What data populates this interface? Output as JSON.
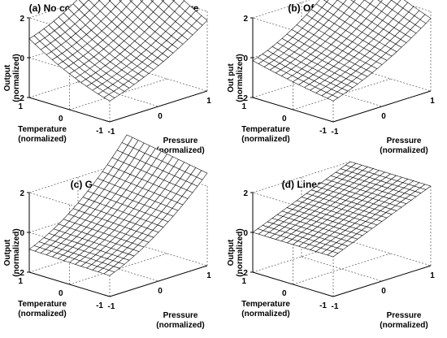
{
  "chart_data": [
    {
      "type": "surface",
      "title": "(a) No corrected measurement curve",
      "xlabel": [
        "Pressure",
        "(normalized)"
      ],
      "ylabel": [
        "Temperature",
        "(normalized)"
      ],
      "zlabel": [
        "Output",
        "(normalized)"
      ],
      "xlim": [
        -1,
        1
      ],
      "ylim": [
        -1,
        1
      ],
      "zlim": [
        -2,
        2
      ],
      "xticks": [
        "-1",
        "0",
        "1"
      ],
      "yticks": [
        "-1",
        "0",
        "1"
      ],
      "zticks": [
        "-2",
        "0",
        "2"
      ],
      "grid": true,
      "mesh": {
        "x_points": 21,
        "y_points": 15,
        "z_corners": {
          "x-1_y-1": -1.0,
          "x1_y-1": -0.2,
          "x-1_y1": 0.3,
          "x1_y1": 1.8
        }
      },
      "surface": {
        "z0": -0.95,
        "ax": 0.75,
        "ay": 0.55,
        "qx": 0.25,
        "qy": 0.2,
        "e": 0.9
      }
    },
    {
      "type": "surface",
      "title": "(b) Offest correction",
      "xlabel": [
        "Pressure",
        "(normalized)"
      ],
      "ylabel": [
        "Temperature",
        "(normalized)"
      ],
      "zlabel": [
        "Out put",
        "(normalized)"
      ],
      "xlim": [
        -1,
        1
      ],
      "ylim": [
        -1,
        1
      ],
      "zlim": [
        -2,
        2
      ],
      "xticks": [
        "-1",
        "0",
        "1"
      ],
      "yticks": [
        "-1",
        "0",
        "1"
      ],
      "zticks": [
        "-2",
        "0",
        "2"
      ],
      "grid": true,
      "mesh": {
        "x_points": 21,
        "y_points": 15,
        "z_corners": {
          "x-1_y-1": -1.0,
          "x1_y-1": 0.0,
          "x-1_y1": -0.6,
          "x1_y1": 1.8
        }
      },
      "surface": {
        "z0": -0.95,
        "ax": 0.8,
        "ay": 0.3,
        "qx": 0.25,
        "qy": 0.05,
        "e": 0.9
      }
    },
    {
      "type": "surface",
      "title": "(c) Gain correction",
      "xlabel": [
        "Pressure",
        "(normalized)"
      ],
      "ylabel": [
        "Temperature",
        "(normalized)"
      ],
      "zlabel": [
        "Output",
        "(normalized)"
      ],
      "xlim": [
        -1,
        1
      ],
      "ylim": [
        -1,
        1
      ],
      "zlim": [
        -2,
        2
      ],
      "xticks": [
        "-1",
        "0",
        "1"
      ],
      "yticks": [
        "-1",
        "0",
        "1"
      ],
      "zticks": [
        "-2",
        "0",
        "2"
      ],
      "grid": true,
      "mesh": {
        "x_points": 21,
        "y_points": 15,
        "z_corners": {
          "x-1_y-1": -1.0,
          "x1_y-1": 0.9,
          "x-1_y1": -1.0,
          "x1_y1": 1.9
        }
      },
      "surface": {
        "z0": -0.95,
        "ax": 1.0,
        "ay": 0.05,
        "qx": 0.4,
        "qy": 0.0,
        "e": 0.6
      }
    },
    {
      "type": "surface",
      "title": "(d) Linearity correction",
      "xlabel": [
        "Pressure",
        "(normalized)"
      ],
      "ylabel": [
        "Temperature",
        "(normalized)"
      ],
      "zlabel": [
        "Output",
        "(normalized)"
      ],
      "xlim": [
        -1,
        1
      ],
      "ylim": [
        -1,
        1
      ],
      "zlim": [
        -2,
        2
      ],
      "xticks": [
        "-1",
        "0",
        "1"
      ],
      "yticks": [
        "-1",
        "0",
        "1"
      ],
      "zticks": [
        "-2",
        "0",
        "2"
      ],
      "grid": true,
      "mesh": {
        "x_points": 21,
        "y_points": 15,
        "z_corners": {
          "x-1_y-1": -1.0,
          "x1_y-1": 1.0,
          "x-1_y1": -1.0,
          "x1_y1": 1.0
        }
      },
      "surface": {
        "z0": 0.0,
        "ax": 1.0,
        "ay": 0.0,
        "qx": 0.0,
        "qy": 0.0,
        "e": 0.0
      }
    }
  ]
}
